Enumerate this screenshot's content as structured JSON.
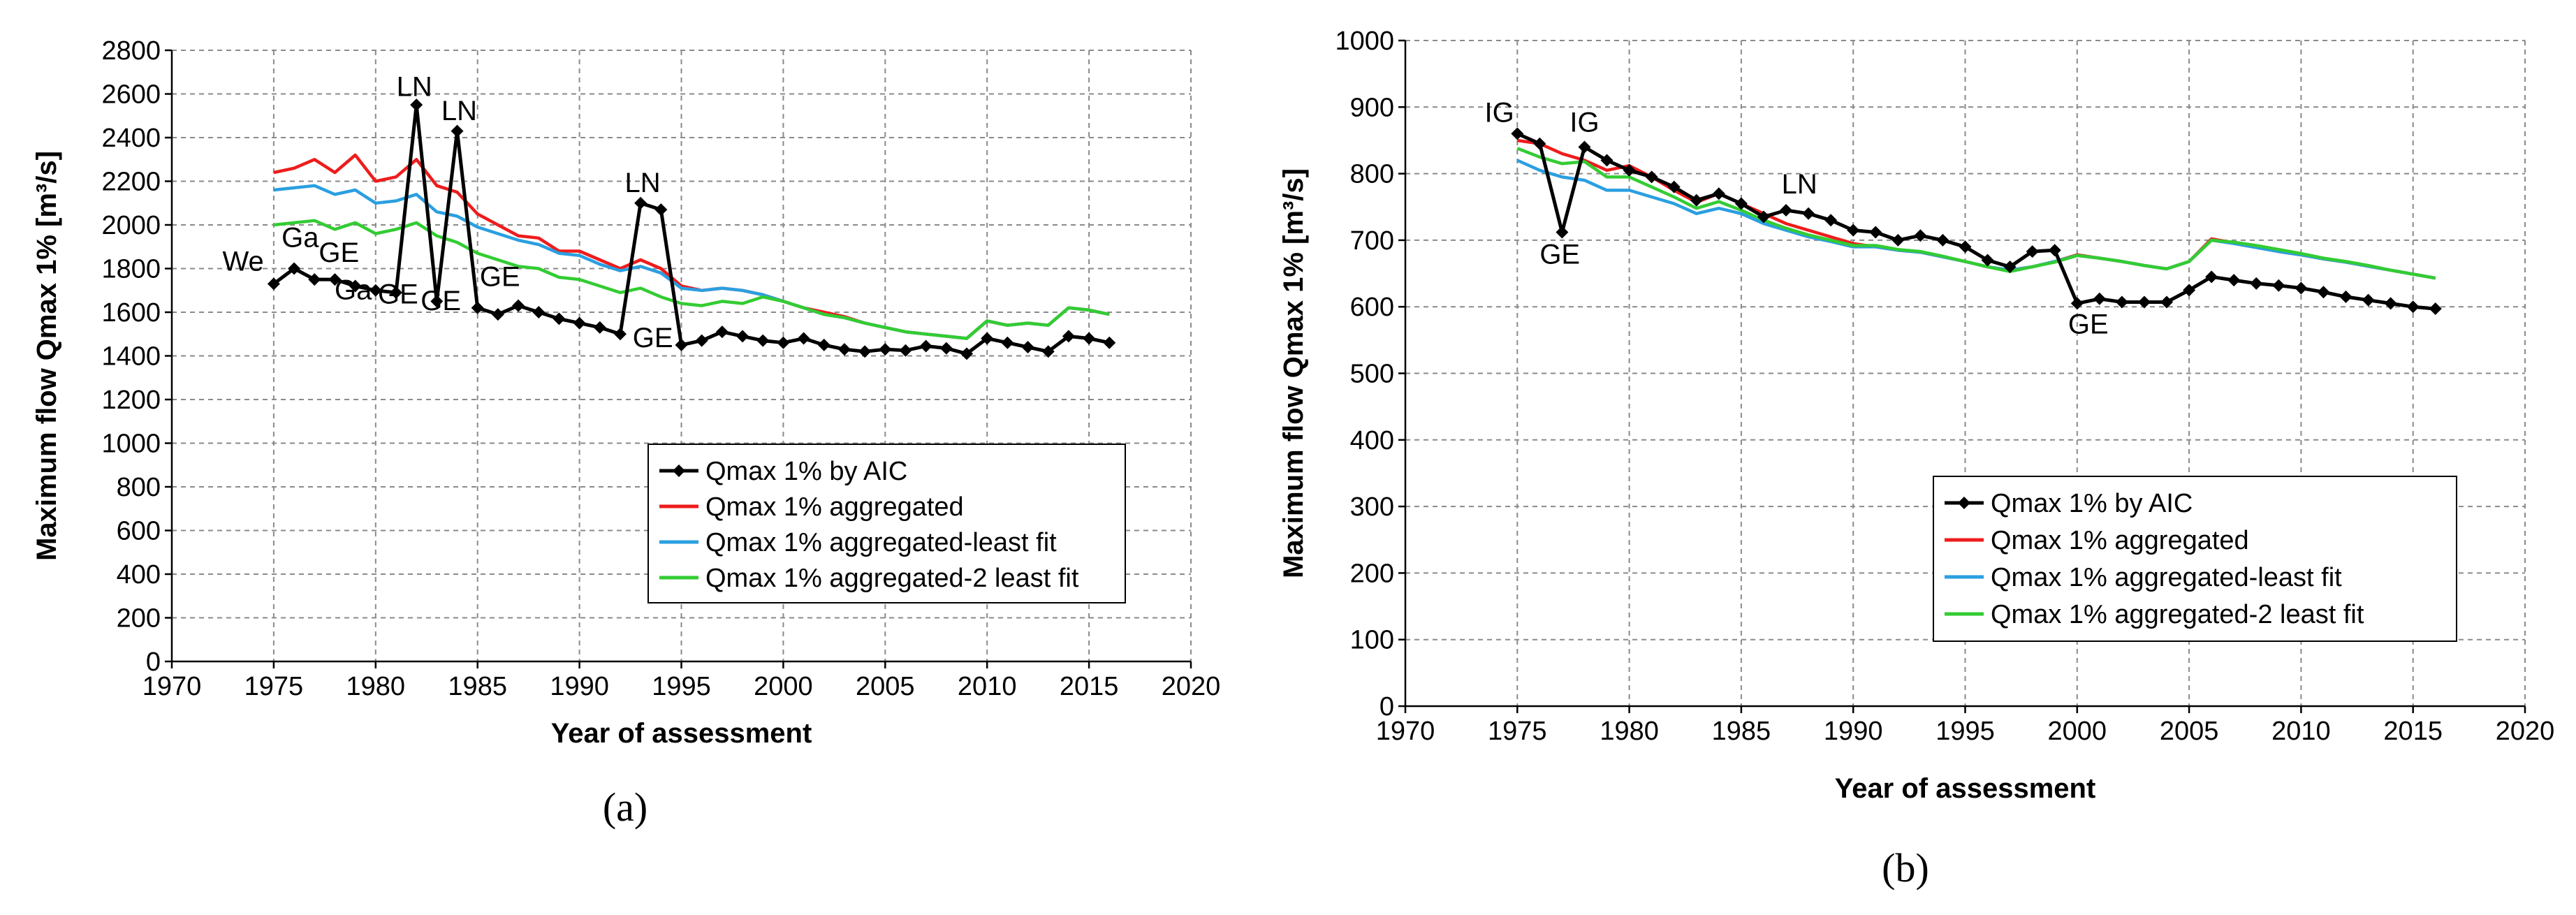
{
  "chart_data": [
    {
      "type": "line",
      "panel_label": "(a)",
      "xlabel": "Year of assessment",
      "ylabel": "Maximum flow Qmax 1% [m³/s]",
      "xlim": [
        1970,
        2020
      ],
      "ylim": [
        0,
        2800
      ],
      "xticks": [
        1970,
        1975,
        1980,
        1985,
        1990,
        1995,
        2000,
        2005,
        2010,
        2015,
        2020
      ],
      "yticks": [
        0,
        200,
        400,
        600,
        800,
        1000,
        1200,
        1400,
        1600,
        1800,
        2000,
        2200,
        2400,
        2600,
        2800
      ],
      "grid": "dashed",
      "legend_position": "lower-right",
      "x": [
        1975,
        1976,
        1977,
        1978,
        1979,
        1980,
        1981,
        1982,
        1983,
        1984,
        1985,
        1986,
        1987,
        1988,
        1989,
        1990,
        1991,
        1992,
        1993,
        1994,
        1995,
        1996,
        1997,
        1998,
        1999,
        2000,
        2001,
        2002,
        2003,
        2004,
        2005,
        2006,
        2007,
        2008,
        2009,
        2010,
        2011,
        2012,
        2013,
        2014,
        2015,
        2016
      ],
      "series": [
        {
          "name": "Qmax 1% by AIC",
          "color": "#000000",
          "markers": true,
          "values": [
            1730,
            1800,
            1750,
            1750,
            1720,
            1700,
            1690,
            2550,
            1650,
            2430,
            1620,
            1590,
            1630,
            1600,
            1570,
            1550,
            1530,
            1500,
            2100,
            2070,
            1450,
            1470,
            1510,
            1490,
            1470,
            1460,
            1480,
            1450,
            1430,
            1420,
            1430,
            1425,
            1445,
            1435,
            1410,
            1480,
            1460,
            1440,
            1420,
            1490,
            1480,
            1460
          ]
        },
        {
          "name": "Qmax 1% aggregated",
          "color": "#ee1c1c",
          "markers": false,
          "values": [
            2240,
            2260,
            2300,
            2240,
            2320,
            2200,
            2220,
            2300,
            2180,
            2150,
            2050,
            2000,
            1950,
            1940,
            1880,
            1880,
            1840,
            1800,
            1840,
            1800,
            1720,
            1700,
            1710,
            1700,
            1680,
            1650,
            1620,
            1600,
            1580,
            1550,
            1530,
            1510,
            1500,
            1490,
            1480,
            1560,
            1540,
            1550,
            1540,
            1620,
            1610,
            1590
          ]
        },
        {
          "name": "Qmax 1% aggregated-least fit",
          "color": "#2a9fe0",
          "markers": false,
          "values": [
            2160,
            2170,
            2180,
            2140,
            2160,
            2100,
            2110,
            2140,
            2060,
            2040,
            1990,
            1960,
            1930,
            1910,
            1870,
            1860,
            1820,
            1790,
            1810,
            1780,
            1710,
            1700,
            1710,
            1700,
            1680,
            1650,
            1620,
            1590,
            1575,
            1550,
            1530,
            1510,
            1500,
            1490,
            1480,
            1560,
            1540,
            1550,
            1540,
            1620,
            1610,
            1590
          ]
        },
        {
          "name": "Qmax 1% aggregated-2 least fit",
          "color": "#33cc33",
          "markers": false,
          "values": [
            2000,
            2010,
            2020,
            1980,
            2010,
            1960,
            1980,
            2010,
            1950,
            1920,
            1870,
            1840,
            1810,
            1800,
            1760,
            1750,
            1720,
            1690,
            1710,
            1670,
            1640,
            1630,
            1650,
            1640,
            1670,
            1650,
            1620,
            1590,
            1575,
            1550,
            1530,
            1510,
            1500,
            1490,
            1480,
            1560,
            1540,
            1550,
            1540,
            1620,
            1610,
            1590
          ]
        }
      ],
      "annotations": [
        {
          "text": "We",
          "x": 1973.5,
          "y": 1790
        },
        {
          "text": "Ga",
          "x": 1976.3,
          "y": 1900
        },
        {
          "text": "GE",
          "x": 1978.2,
          "y": 1830
        },
        {
          "text": "Ga",
          "x": 1978.9,
          "y": 1660
        },
        {
          "text": "GE",
          "x": 1981.1,
          "y": 1640
        },
        {
          "text": "LN",
          "x": 1981.9,
          "y": 2590
        },
        {
          "text": "GE",
          "x": 1983.2,
          "y": 1610
        },
        {
          "text": "LN",
          "x": 1984.1,
          "y": 2480
        },
        {
          "text": "GE",
          "x": 1986.1,
          "y": 1720
        },
        {
          "text": "LN",
          "x": 1993.1,
          "y": 2150
        },
        {
          "text": "GE",
          "x": 1993.6,
          "y": 1440
        }
      ]
    },
    {
      "type": "line",
      "panel_label": "(b)",
      "xlabel": "Year of assessment",
      "ylabel": "Maximum flow Qmax 1% [m³/s]",
      "xlim": [
        1970,
        2020
      ],
      "ylim": [
        0,
        1000
      ],
      "xticks": [
        1970,
        1975,
        1980,
        1985,
        1990,
        1995,
        2000,
        2005,
        2010,
        2015,
        2020
      ],
      "yticks": [
        0,
        100,
        200,
        300,
        400,
        500,
        600,
        700,
        800,
        900,
        1000
      ],
      "grid": "dashed",
      "legend_position": "lower-right",
      "x": [
        1975,
        1976,
        1977,
        1978,
        1979,
        1980,
        1981,
        1982,
        1983,
        1984,
        1985,
        1986,
        1987,
        1988,
        1989,
        1990,
        1991,
        1992,
        1993,
        1994,
        1995,
        1996,
        1997,
        1998,
        1999,
        2000,
        2001,
        2002,
        2003,
        2004,
        2005,
        2006,
        2007,
        2008,
        2009,
        2010,
        2011,
        2012,
        2013,
        2014,
        2015,
        2016
      ],
      "series": [
        {
          "name": "Qmax 1% by AIC",
          "color": "#000000",
          "markers": true,
          "values": [
            860,
            845,
            712,
            840,
            820,
            805,
            795,
            780,
            760,
            770,
            755,
            735,
            745,
            740,
            730,
            715,
            712,
            700,
            707,
            700,
            690,
            670,
            660,
            683,
            685,
            605,
            612,
            607,
            607,
            607,
            625,
            645,
            640,
            635,
            632,
            628,
            622,
            615,
            610,
            605,
            600,
            597
          ]
        },
        {
          "name": "Qmax 1% aggregated",
          "color": "#ee1c1c",
          "markers": false,
          "values": [
            850,
            845,
            830,
            820,
            805,
            812,
            795,
            775,
            757,
            770,
            755,
            740,
            725,
            715,
            705,
            695,
            690,
            685,
            682,
            675,
            668,
            660,
            655,
            660,
            668,
            678,
            673,
            668,
            662,
            657,
            668,
            702,
            696,
            690,
            683,
            678,
            672,
            667,
            661,
            655,
            649,
            643
          ]
        },
        {
          "name": "Qmax 1% aggregated-least fit",
          "color": "#2a9fe0",
          "markers": false,
          "values": [
            820,
            805,
            795,
            790,
            775,
            775,
            765,
            755,
            740,
            748,
            740,
            725,
            715,
            705,
            698,
            690,
            690,
            685,
            682,
            675,
            668,
            660,
            655,
            660,
            668,
            677,
            673,
            668,
            662,
            657,
            668,
            700,
            695,
            689,
            683,
            678,
            672,
            667,
            661,
            655,
            649,
            643
          ]
        },
        {
          "name": "Qmax 1% aggregated-2 least fit",
          "color": "#33cc33",
          "markers": false,
          "values": [
            838,
            825,
            815,
            818,
            795,
            795,
            780,
            765,
            748,
            758,
            745,
            730,
            718,
            708,
            700,
            692,
            692,
            686,
            683,
            676,
            668,
            660,
            653,
            660,
            667,
            677,
            673,
            668,
            662,
            657,
            668,
            700,
            697,
            692,
            686,
            680,
            673,
            668,
            662,
            655,
            649,
            643
          ]
        }
      ],
      "annotations": [
        {
          "text": "IG",
          "x": 1974.2,
          "y": 878
        },
        {
          "text": "IG",
          "x": 1978.0,
          "y": 863
        },
        {
          "text": "GE",
          "x": 1976.9,
          "y": 665
        },
        {
          "text": "LN",
          "x": 1987.6,
          "y": 770
        },
        {
          "text": "GE",
          "x": 2000.5,
          "y": 560
        }
      ]
    }
  ]
}
